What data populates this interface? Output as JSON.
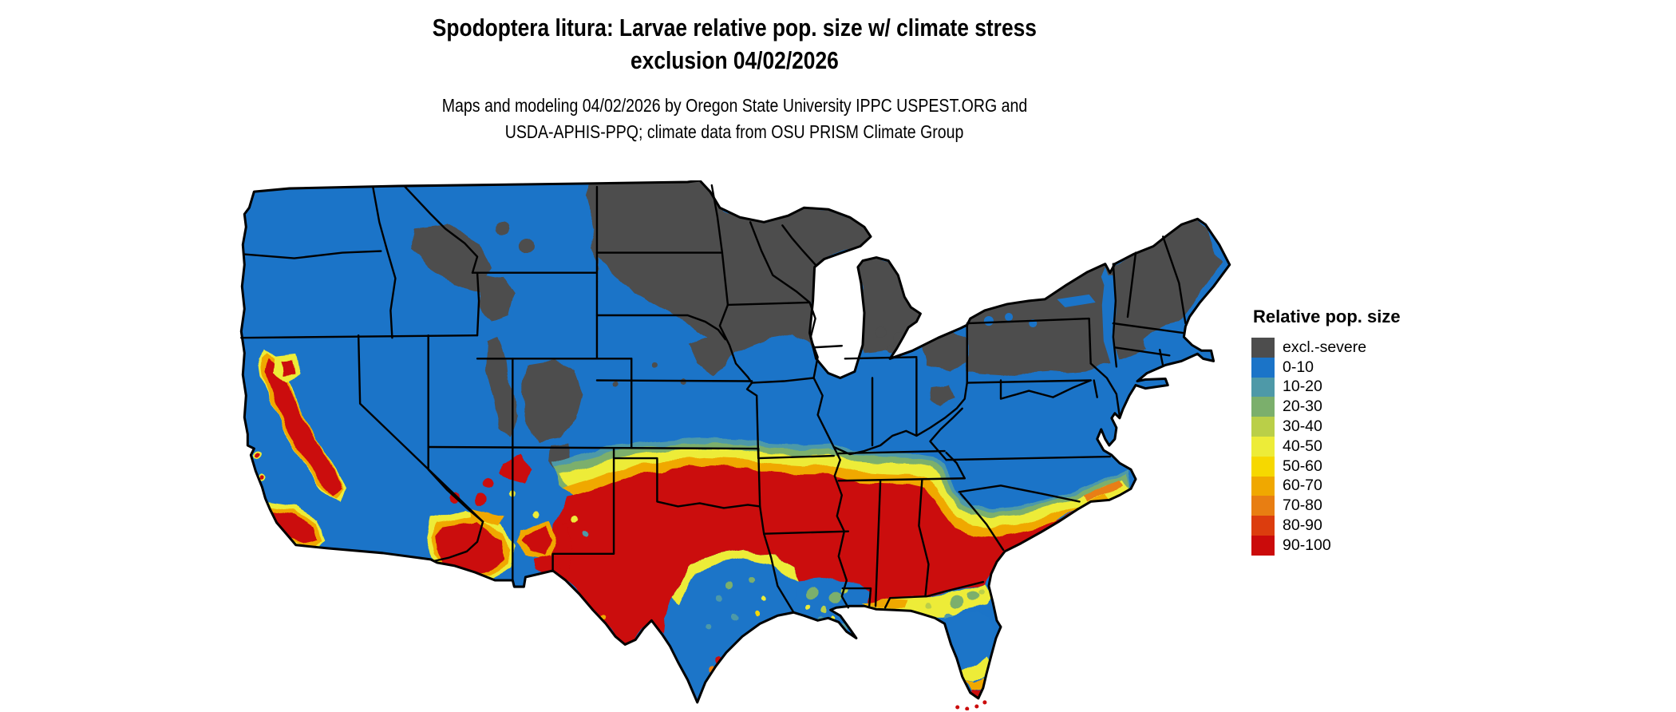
{
  "title": {
    "line1": "Spodoptera litura: Larvae relative pop. size w/ climate stress",
    "line2": "exclusion 04/02/2026"
  },
  "subtitle": {
    "line1": "Maps and modeling 04/02/2026 by Oregon State University IPPC USPEST.ORG and",
    "line2": "USDA-APHIS-PPQ; climate data from OSU PRISM Climate Group"
  },
  "legend": {
    "title": "Relative pop. size",
    "items": [
      {
        "key": "excl",
        "label": "excl.-severe",
        "color": "#4D4D4D"
      },
      {
        "key": "b0",
        "label": "0-10",
        "color": "#1B74C8"
      },
      {
        "key": "b10",
        "label": "10-20",
        "color": "#4E99A8"
      },
      {
        "key": "b20",
        "label": "20-30",
        "color": "#7BAF6C"
      },
      {
        "key": "b30",
        "label": "30-40",
        "color": "#BACF48"
      },
      {
        "key": "b40",
        "label": "40-50",
        "color": "#EDEC38"
      },
      {
        "key": "b50",
        "label": "50-60",
        "color": "#F6D800"
      },
      {
        "key": "b60",
        "label": "60-70",
        "color": "#F0A800"
      },
      {
        "key": "b70",
        "label": "70-80",
        "color": "#E87E12"
      },
      {
        "key": "b80",
        "label": "80-90",
        "color": "#DC3D0E"
      },
      {
        "key": "b90",
        "label": "90-100",
        "color": "#CB0B0B"
      }
    ]
  },
  "map": {
    "region": "Contiguous United States",
    "border_color": "#000000",
    "water_color": "#ffffff",
    "base_key": "b0"
  }
}
